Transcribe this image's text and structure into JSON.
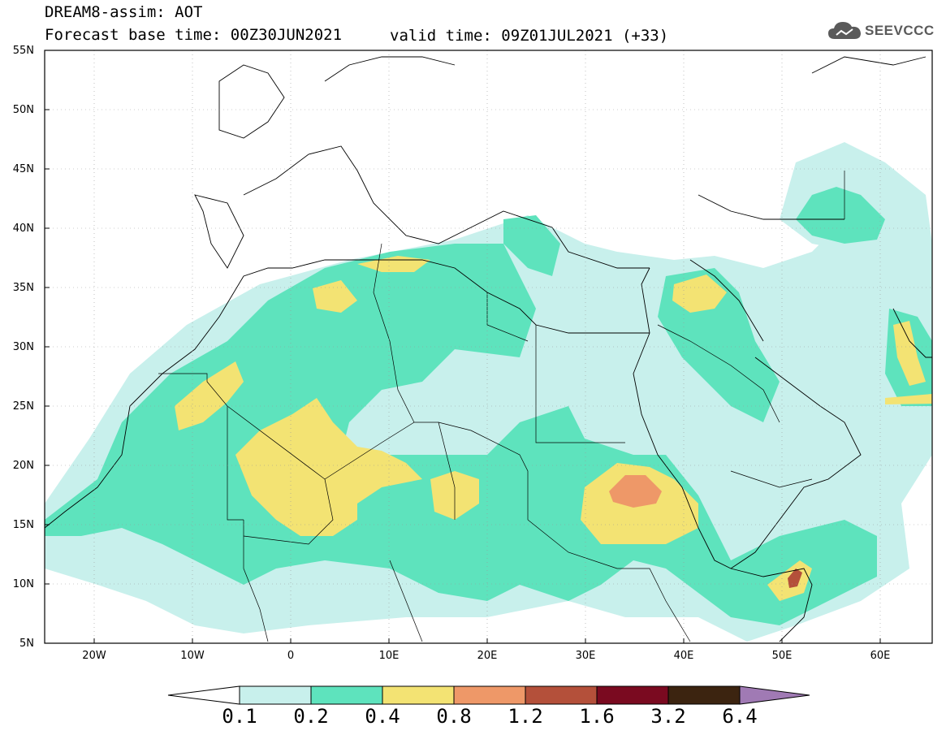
{
  "header": {
    "title": "DREAM8-assim: AOT",
    "base_time": "Forecast base time: 00Z30JUN2021",
    "valid_time": "valid time: 09Z01JUL2021 (+33)"
  },
  "logo": {
    "name": "SEEVCCC",
    "icon": "cloud-icon"
  },
  "map": {
    "projection": "lat-lon",
    "lon_range": [
      -25,
      65
    ],
    "lat_range": [
      5,
      55
    ],
    "lat_labels": [
      "55N",
      "50N",
      "45N",
      "40N",
      "35N",
      "30N",
      "25N",
      "20N",
      "15N",
      "10N",
      "5N"
    ],
    "lon_labels": [
      "20W",
      "10W",
      "0",
      "10E",
      "20E",
      "30E",
      "40E",
      "50E",
      "60E"
    ],
    "gridlines": "dotted"
  },
  "legend": {
    "values": [
      "0.1",
      "0.2",
      "0.4",
      "0.8",
      "1.2",
      "1.6",
      "3.2",
      "6.4"
    ],
    "colors": [
      "#c8f0ec",
      "#5ee3bd",
      "#f3e373",
      "#ee9868",
      "#b4503a",
      "#7a0a20",
      "#3c2410",
      "#a07ab4"
    ]
  }
}
